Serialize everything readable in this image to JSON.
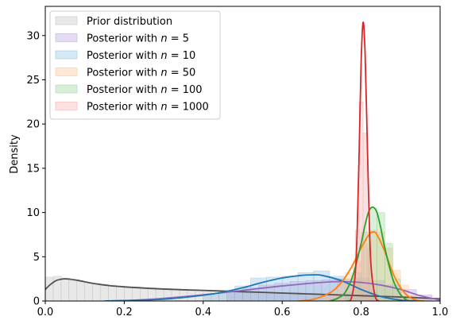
{
  "chart_data": {
    "type": "histogram+kde",
    "title": "",
    "xlabel": "",
    "ylabel": "Density",
    "xlim": [
      0.0,
      1.0
    ],
    "ylim": [
      0,
      33.3
    ],
    "xticks": [
      0.0,
      0.2,
      0.4,
      0.6,
      0.8,
      1.0
    ],
    "xtick_labels": [
      "0.0",
      "0.2",
      "0.4",
      "0.6",
      "0.8",
      "1.0"
    ],
    "yticks": [
      0,
      5,
      10,
      15,
      20,
      25,
      30
    ],
    "ytick_labels": [
      "0",
      "5",
      "10",
      "15",
      "20",
      "25",
      "30"
    ],
    "grid": false,
    "legend_position": "top-left",
    "series": [
      {
        "name": "Prior distribution",
        "legend_prefix": "Prior distribution",
        "legend_n": "",
        "hist_color": "#bdbdbd",
        "kde_color": "#505050",
        "kde_x": [
          0.0,
          0.01,
          0.02,
          0.03,
          0.05,
          0.08,
          0.12,
          0.16,
          0.2,
          0.3,
          0.4,
          0.5,
          0.6,
          0.7,
          0.8,
          0.9,
          1.0
        ],
        "kde_y": [
          1.3,
          1.75,
          2.1,
          2.35,
          2.5,
          2.35,
          2.0,
          1.75,
          1.6,
          1.35,
          1.2,
          1.05,
          0.9,
          0.75,
          0.6,
          0.45,
          0.25
        ],
        "bins": [
          0.0,
          0.02,
          0.04,
          0.06,
          0.08,
          0.1,
          0.12,
          0.14,
          0.16,
          0.18,
          0.2,
          0.22,
          0.24,
          0.26,
          0.28,
          0.3,
          0.32,
          0.34,
          0.36,
          0.38,
          0.4,
          0.42,
          0.44,
          0.46,
          0.48,
          0.5,
          0.52,
          0.54,
          0.56,
          0.58,
          0.6,
          0.62,
          0.64,
          0.66,
          0.68,
          0.7,
          0.72,
          0.74,
          0.76,
          0.78,
          0.8,
          0.82,
          0.84,
          0.86,
          0.88,
          0.9,
          0.92,
          0.94,
          0.96,
          0.98
        ],
        "bin_width": 0.02,
        "hist_values": [
          2.7,
          2.8,
          2.6,
          2.3,
          2.2,
          2.0,
          2.0,
          1.9,
          1.8,
          1.7,
          1.6,
          1.6,
          1.5,
          1.5,
          1.4,
          1.4,
          1.3,
          1.3,
          1.25,
          1.2,
          1.2,
          1.15,
          1.1,
          1.1,
          1.05,
          1.0,
          1.0,
          0.95,
          0.95,
          0.9,
          0.9,
          0.85,
          0.85,
          0.8,
          0.8,
          0.75,
          0.7,
          0.7,
          0.65,
          0.65,
          0.6,
          0.6,
          0.55,
          0.5,
          0.5,
          0.45,
          0.4,
          0.35,
          0.3,
          0.3
        ]
      },
      {
        "name": "Posterior with n = 5",
        "legend_prefix": "Posterior with ",
        "legend_n": "5",
        "hist_color": "#b19cd9",
        "kde_color": "#9467bd",
        "kde_x": [
          0.18,
          0.25,
          0.3,
          0.4,
          0.5,
          0.6,
          0.7,
          0.75,
          0.8,
          0.85,
          0.9,
          0.95,
          1.0
        ],
        "kde_y": [
          0.0,
          0.15,
          0.3,
          0.7,
          1.2,
          1.7,
          2.1,
          2.2,
          2.1,
          1.8,
          1.3,
          0.6,
          0.1
        ],
        "bins": [
          0.46,
          0.5,
          0.54,
          0.58,
          0.62,
          0.66,
          0.7,
          0.74,
          0.78,
          0.82,
          0.86,
          0.9,
          0.94
        ],
        "bin_width": 0.04,
        "hist_values": [
          1.0,
          1.5,
          1.8,
          2.0,
          2.2,
          2.3,
          2.4,
          2.5,
          2.6,
          2.3,
          1.8,
          1.3,
          0.7
        ]
      },
      {
        "name": "Posterior with n = 10",
        "legend_prefix": "Posterior with ",
        "legend_n": "10",
        "hist_color": "#87bde0",
        "kde_color": "#1f77b4",
        "kde_x": [
          0.15,
          0.2,
          0.3,
          0.4,
          0.45,
          0.5,
          0.55,
          0.6,
          0.65,
          0.68,
          0.7,
          0.75,
          0.8,
          0.85,
          0.9,
          0.95
        ],
        "kde_y": [
          0.0,
          0.05,
          0.2,
          0.65,
          1.0,
          1.5,
          2.1,
          2.6,
          2.9,
          2.95,
          2.9,
          2.3,
          1.3,
          0.5,
          0.1,
          0.0
        ],
        "bins": [
          0.4,
          0.44,
          0.48,
          0.52,
          0.56,
          0.6,
          0.64,
          0.68,
          0.72,
          0.76,
          0.8
        ],
        "bin_width": 0.04,
        "hist_values": [
          0.8,
          1.0,
          1.7,
          2.6,
          2.7,
          2.8,
          3.2,
          3.4,
          2.8,
          2.0,
          1.0
        ]
      },
      {
        "name": "Posterior with n = 50",
        "legend_prefix": "Posterior with ",
        "legend_n": "50",
        "hist_color": "#ffbf86",
        "kde_color": "#ff7f0e",
        "kde_x": [
          0.64,
          0.68,
          0.72,
          0.74,
          0.76,
          0.78,
          0.8,
          0.82,
          0.83,
          0.84,
          0.86,
          0.88,
          0.9,
          0.92,
          0.94,
          0.96
        ],
        "kde_y": [
          0.0,
          0.2,
          0.9,
          1.6,
          2.7,
          4.2,
          6.0,
          7.5,
          7.8,
          7.5,
          5.6,
          3.2,
          1.5,
          0.5,
          0.1,
          0.0
        ],
        "bins": [
          0.7,
          0.72,
          0.74,
          0.76,
          0.78,
          0.8,
          0.82,
          0.84,
          0.86,
          0.88,
          0.9,
          0.92
        ],
        "bin_width": 0.02,
        "hist_values": [
          0.5,
          1.0,
          2.0,
          3.2,
          4.5,
          6.5,
          8.0,
          7.8,
          6.0,
          3.5,
          1.8,
          0.6
        ]
      },
      {
        "name": "Posterior with n = 100",
        "legend_prefix": "Posterior with ",
        "legend_n": "100",
        "hist_color": "#96d096",
        "kde_color": "#2ca02c",
        "kde_x": [
          0.72,
          0.74,
          0.76,
          0.78,
          0.8,
          0.81,
          0.82,
          0.83,
          0.84,
          0.85,
          0.86,
          0.88,
          0.9,
          0.92
        ],
        "kde_y": [
          0.0,
          0.3,
          1.0,
          3.0,
          6.5,
          8.6,
          10.2,
          10.6,
          10.0,
          8.2,
          6.0,
          2.5,
          0.7,
          0.0
        ],
        "bins": [
          0.76,
          0.78,
          0.8,
          0.82,
          0.84,
          0.86,
          0.88
        ],
        "bin_width": 0.02,
        "hist_values": [
          1.0,
          3.2,
          7.8,
          10.5,
          10.0,
          6.5,
          2.5
        ]
      },
      {
        "name": "Posterior with n = 1000",
        "legend_prefix": "Posterior with ",
        "legend_n": "1000",
        "hist_color": "#f4a8a8",
        "kde_color": "#d62728",
        "kde_x": [
          0.765,
          0.775,
          0.785,
          0.79,
          0.795,
          0.8,
          0.805,
          0.81,
          0.815,
          0.82,
          0.825,
          0.835,
          0.845
        ],
        "kde_y": [
          0.0,
          0.3,
          3.0,
          8.0,
          17.0,
          27.0,
          31.5,
          28.0,
          19.0,
          10.0,
          4.0,
          0.6,
          0.0
        ],
        "bins": [
          0.775,
          0.785,
          0.795,
          0.805,
          0.815,
          0.825
        ],
        "bin_width": 0.01,
        "hist_values": [
          0.8,
          8.0,
          22.5,
          19.0,
          6.0,
          1.2
        ]
      }
    ]
  }
}
